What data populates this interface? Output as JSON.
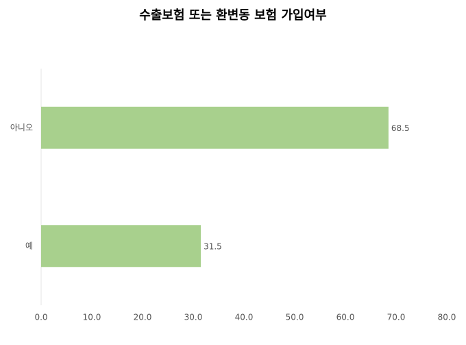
{
  "chart_data": {
    "type": "hbar",
    "title": "수출보험 또는 환변동 보험 가입여부",
    "categories": [
      "아니오",
      "예"
    ],
    "values": [
      68.5,
      31.5
    ],
    "color": "#a8d08d",
    "xlim": [
      0,
      80
    ],
    "xticks": [
      {
        "value": 0,
        "label": "0.0"
      },
      {
        "value": 10,
        "label": "10.0"
      },
      {
        "value": 20,
        "label": "20.0"
      },
      {
        "value": 30,
        "label": "30.0"
      },
      {
        "value": 40,
        "label": "40.0"
      },
      {
        "value": 50,
        "label": "50.0"
      },
      {
        "value": 60,
        "label": "60.0"
      },
      {
        "value": 70,
        "label": "70.0"
      },
      {
        "value": 80,
        "label": "80.0"
      }
    ]
  }
}
